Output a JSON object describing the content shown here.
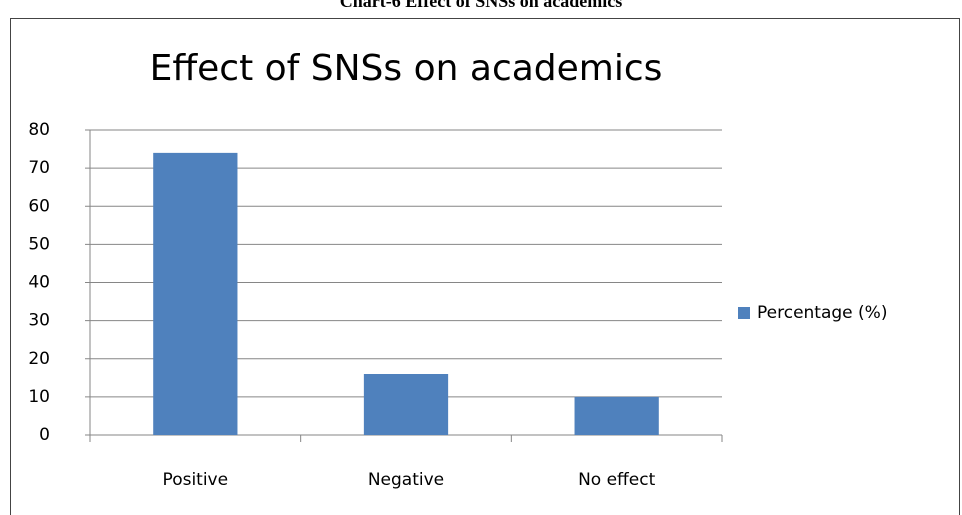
{
  "caption": "Chart-6 Effect of SNSs on academics",
  "chart_data": {
    "type": "bar",
    "title": "Effect of SNSs on academics",
    "categories": [
      "Positive",
      "Negative",
      "No effect"
    ],
    "series": [
      {
        "name": "Percentage (%)",
        "color": "#4f81bd",
        "values": [
          74,
          16,
          10
        ]
      }
    ],
    "ylim": [
      0,
      80
    ],
    "yticks": [
      0,
      10,
      20,
      30,
      40,
      50,
      60,
      70,
      80
    ],
    "grid": true,
    "legend": "right"
  }
}
